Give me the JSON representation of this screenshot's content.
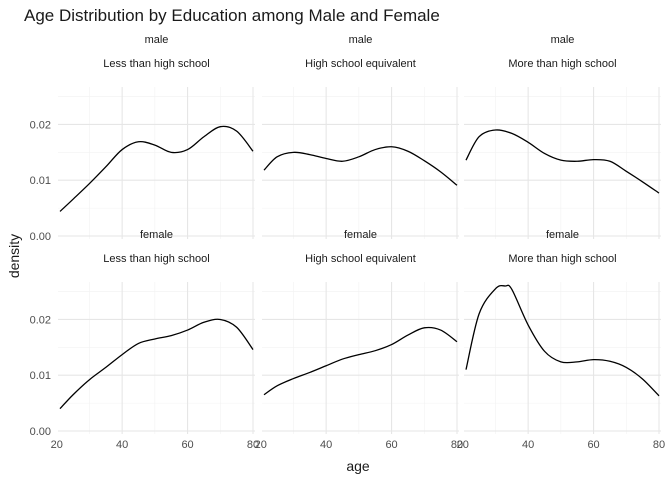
{
  "chart_data": {
    "type": "line",
    "title": "Age Distribution by Education among Male and Female",
    "xlabel": "age",
    "ylabel": "density",
    "xlim": [
      21,
      80
    ],
    "ylim": [
      0,
      0.026
    ],
    "x_ticks": [
      "20",
      "40",
      "60",
      "80"
    ],
    "x_tick_values": [
      20,
      40,
      60,
      80
    ],
    "y_ticks": [
      "0.00",
      "0.01",
      "0.02"
    ],
    "y_tick_values": [
      0,
      0.01,
      0.02
    ],
    "grid": true,
    "colors": {
      "line": "#000000",
      "grid_major": "#e6e6e6",
      "grid_minor": "#f2f2f2",
      "strip_text": "#1a1a1a",
      "tick_text": "#4d4d4d"
    },
    "panels": [
      {
        "sex": "male",
        "education": "Less than high school",
        "x": [
          21,
          25,
          30,
          35,
          40,
          45,
          50,
          55,
          60,
          65,
          70,
          75,
          80
        ],
        "y": [
          0.0044,
          0.0066,
          0.0094,
          0.0124,
          0.0155,
          0.0169,
          0.0163,
          0.015,
          0.0155,
          0.0178,
          0.0196,
          0.0188,
          0.0152
        ]
      },
      {
        "sex": "male",
        "education": "High school equivalent",
        "x": [
          21,
          25,
          30,
          35,
          40,
          45,
          50,
          55,
          60,
          65,
          70,
          75,
          80
        ],
        "y": [
          0.0118,
          0.0142,
          0.015,
          0.0146,
          0.0139,
          0.0134,
          0.0142,
          0.0155,
          0.016,
          0.0152,
          0.0135,
          0.0115,
          0.0091
        ]
      },
      {
        "sex": "male",
        "education": "More than high school",
        "x": [
          21,
          25,
          30,
          35,
          40,
          45,
          50,
          55,
          60,
          65,
          70,
          75,
          80
        ],
        "y": [
          0.0136,
          0.0178,
          0.019,
          0.0184,
          0.0168,
          0.0148,
          0.0136,
          0.0134,
          0.0137,
          0.0134,
          0.0116,
          0.0097,
          0.0077
        ]
      },
      {
        "sex": "female",
        "education": "Less than high school",
        "x": [
          21,
          25,
          30,
          35,
          40,
          45,
          50,
          55,
          60,
          65,
          70,
          75,
          80
        ],
        "y": [
          0.004,
          0.0065,
          0.0092,
          0.0114,
          0.0137,
          0.0157,
          0.0165,
          0.0171,
          0.0181,
          0.0195,
          0.02,
          0.0186,
          0.0146
        ]
      },
      {
        "sex": "female",
        "education": "High school equivalent",
        "x": [
          21,
          25,
          30,
          35,
          40,
          45,
          50,
          55,
          60,
          65,
          70,
          75,
          80
        ],
        "y": [
          0.0065,
          0.0081,
          0.0094,
          0.0105,
          0.0117,
          0.0129,
          0.0137,
          0.0144,
          0.0155,
          0.0172,
          0.0185,
          0.0181,
          0.016
        ]
      },
      {
        "sex": "female",
        "education": "More than high school",
        "x": [
          21,
          25,
          30,
          33,
          35,
          40,
          45,
          50,
          55,
          60,
          65,
          70,
          75,
          80
        ],
        "y": [
          0.011,
          0.021,
          0.0255,
          0.026,
          0.0254,
          0.019,
          0.0143,
          0.0124,
          0.0124,
          0.0128,
          0.0125,
          0.0114,
          0.0093,
          0.0063
        ]
      }
    ]
  }
}
